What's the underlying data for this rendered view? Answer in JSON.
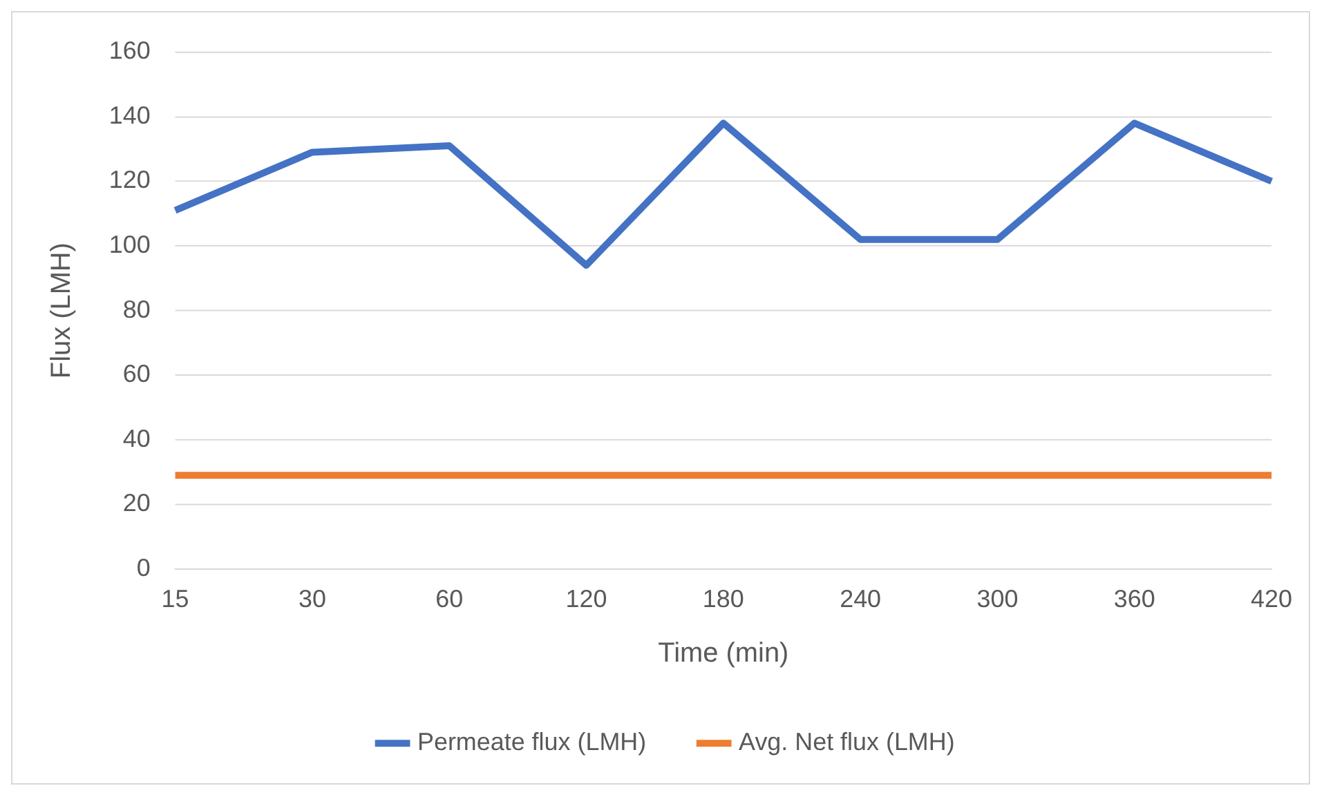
{
  "chart_data": {
    "type": "line",
    "xlabel": "Time (min)",
    "ylabel": "Flux (LMH)",
    "categories": [
      "15",
      "30",
      "60",
      "120",
      "180",
      "240",
      "300",
      "360",
      "420"
    ],
    "series": [
      {
        "name": "Permeate flux (LMH)",
        "color": "#4472c4",
        "values": [
          111,
          129,
          131,
          94,
          138,
          102,
          102,
          138,
          120
        ]
      },
      {
        "name": "Avg. Net flux (LMH)",
        "color": "#ed7d31",
        "values": [
          29,
          29,
          29,
          29,
          29,
          29,
          29,
          29,
          29
        ]
      }
    ],
    "ylim": [
      0,
      160
    ],
    "yticks": [
      0,
      20,
      40,
      60,
      80,
      100,
      120,
      140,
      160
    ],
    "grid": "y",
    "legend": "bottom",
    "marker": "none",
    "line_style": "solid"
  }
}
